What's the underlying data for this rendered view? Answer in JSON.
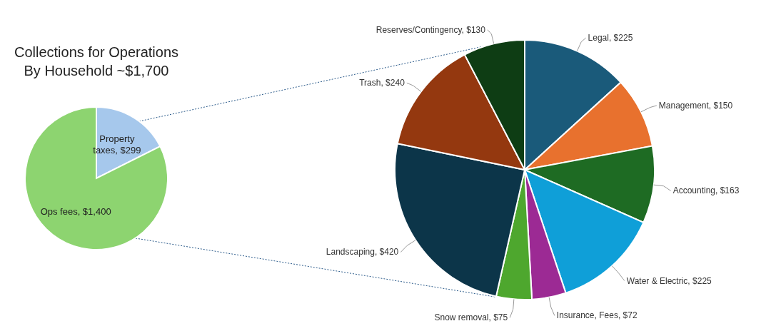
{
  "chart_data": [
    {
      "type": "pie",
      "title": "Collections for Operations By Household ~$1,700",
      "categories": [
        "Property taxes",
        "Ops fees"
      ],
      "values": [
        299,
        1400
      ],
      "colors": [
        "#a6c8ec",
        "#8dd470"
      ],
      "value_labels": [
        "$299",
        "$1,400"
      ]
    },
    {
      "type": "pie",
      "categories": [
        "Legal",
        "Management",
        "Accounting",
        "Water & Electric",
        "Insurance, Fees",
        "Snow removal",
        "Landscaping",
        "Trash",
        "Reserves/Contingency"
      ],
      "values": [
        225,
        150,
        163,
        225,
        72,
        75,
        420,
        240,
        130
      ],
      "colors": [
        "#1a5a7a",
        "#e8712e",
        "#1e6b23",
        "#0f9fd8",
        "#9c2a94",
        "#4ea72e",
        "#0c3549",
        "#94380f",
        "#0e3d14"
      ],
      "value_labels": [
        "$225",
        "$150",
        "$163",
        "$225",
        "$72",
        "$75",
        "$420",
        "$240",
        "$130"
      ]
    }
  ]
}
